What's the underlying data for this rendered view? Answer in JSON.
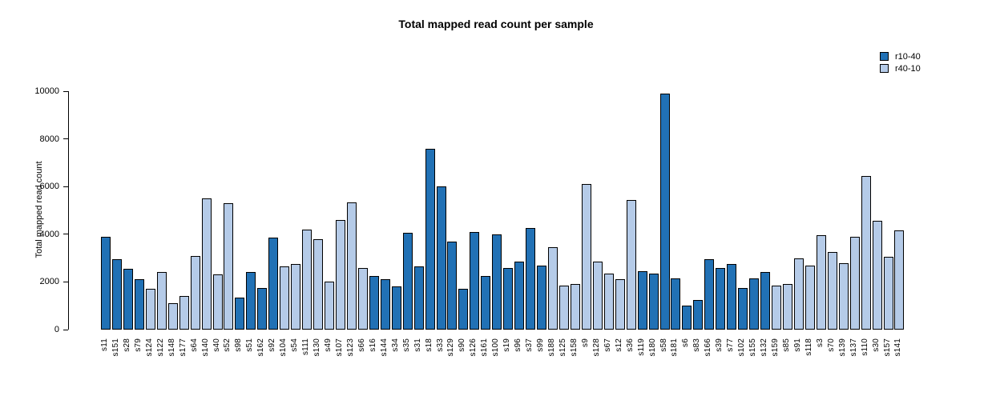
{
  "title": "Total mapped read count per sample",
  "legend": {
    "items": [
      {
        "label": "r10-40",
        "color": "#2171b5"
      },
      {
        "label": "r40-10",
        "color": "#b5cbe8"
      }
    ]
  },
  "chart_data": {
    "type": "bar",
    "title": "Total mapped read count per sample",
    "xlabel": "",
    "ylabel": "Total mapped read count",
    "ylim": [
      0,
      10000
    ],
    "yticks": [
      0,
      2000,
      4000,
      6000,
      8000,
      10000
    ],
    "grid": false,
    "legend_position": "top-right",
    "colors": {
      "r10-40": "#2171b5",
      "r40-10": "#b5cbe8"
    },
    "bars": [
      {
        "label": "s11",
        "value": 3900,
        "group": "r10-40"
      },
      {
        "label": "s151",
        "value": 2950,
        "group": "r10-40"
      },
      {
        "label": "s28",
        "value": 2550,
        "group": "r10-40"
      },
      {
        "label": "s79",
        "value": 2100,
        "group": "r10-40"
      },
      {
        "label": "s124",
        "value": 1700,
        "group": "r40-10"
      },
      {
        "label": "s122",
        "value": 2400,
        "group": "r40-10"
      },
      {
        "label": "s148",
        "value": 1100,
        "group": "r40-10"
      },
      {
        "label": "s177",
        "value": 1400,
        "group": "r40-10"
      },
      {
        "label": "s64",
        "value": 3100,
        "group": "r40-10"
      },
      {
        "label": "s140",
        "value": 5500,
        "group": "r40-10"
      },
      {
        "label": "s40",
        "value": 2300,
        "group": "r40-10"
      },
      {
        "label": "s52",
        "value": 5300,
        "group": "r40-10"
      },
      {
        "label": "s98",
        "value": 1350,
        "group": "r10-40"
      },
      {
        "label": "s51",
        "value": 2400,
        "group": "r10-40"
      },
      {
        "label": "s162",
        "value": 1750,
        "group": "r10-40"
      },
      {
        "label": "s92",
        "value": 3850,
        "group": "r10-40"
      },
      {
        "label": "s104",
        "value": 2650,
        "group": "r40-10"
      },
      {
        "label": "s54",
        "value": 2750,
        "group": "r40-10"
      },
      {
        "label": "s111",
        "value": 4200,
        "group": "r40-10"
      },
      {
        "label": "s130",
        "value": 3800,
        "group": "r40-10"
      },
      {
        "label": "s49",
        "value": 2000,
        "group": "r40-10"
      },
      {
        "label": "s107",
        "value": 4600,
        "group": "r40-10"
      },
      {
        "label": "s123",
        "value": 5350,
        "group": "r40-10"
      },
      {
        "label": "s66",
        "value": 2600,
        "group": "r40-10"
      },
      {
        "label": "s16",
        "value": 2250,
        "group": "r10-40"
      },
      {
        "label": "s144",
        "value": 2100,
        "group": "r10-40"
      },
      {
        "label": "s34",
        "value": 1800,
        "group": "r10-40"
      },
      {
        "label": "s35",
        "value": 4050,
        "group": "r10-40"
      },
      {
        "label": "s31",
        "value": 2650,
        "group": "r10-40"
      },
      {
        "label": "s18",
        "value": 7600,
        "group": "r10-40"
      },
      {
        "label": "s33",
        "value": 6000,
        "group": "r10-40"
      },
      {
        "label": "s129",
        "value": 3700,
        "group": "r10-40"
      },
      {
        "label": "s90",
        "value": 1700,
        "group": "r10-40"
      },
      {
        "label": "s126",
        "value": 4100,
        "group": "r10-40"
      },
      {
        "label": "s161",
        "value": 2250,
        "group": "r10-40"
      },
      {
        "label": "s100",
        "value": 4000,
        "group": "r10-40"
      },
      {
        "label": "s19",
        "value": 2600,
        "group": "r10-40"
      },
      {
        "label": "s96",
        "value": 2850,
        "group": "r10-40"
      },
      {
        "label": "s37",
        "value": 4250,
        "group": "r10-40"
      },
      {
        "label": "s99",
        "value": 2700,
        "group": "r10-40"
      },
      {
        "label": "s188",
        "value": 3450,
        "group": "r40-10"
      },
      {
        "label": "s125",
        "value": 1850,
        "group": "r40-10"
      },
      {
        "label": "s158",
        "value": 1900,
        "group": "r40-10"
      },
      {
        "label": "s9",
        "value": 6100,
        "group": "r40-10"
      },
      {
        "label": "s128",
        "value": 2850,
        "group": "r40-10"
      },
      {
        "label": "s67",
        "value": 2350,
        "group": "r40-10"
      },
      {
        "label": "s12",
        "value": 2100,
        "group": "r40-10"
      },
      {
        "label": "s36",
        "value": 5450,
        "group": "r40-10"
      },
      {
        "label": "s119",
        "value": 2450,
        "group": "r10-40"
      },
      {
        "label": "s180",
        "value": 2350,
        "group": "r10-40"
      },
      {
        "label": "s58",
        "value": 9900,
        "group": "r10-40"
      },
      {
        "label": "s181",
        "value": 2150,
        "group": "r10-40"
      },
      {
        "label": "s6",
        "value": 1000,
        "group": "r10-40"
      },
      {
        "label": "s83",
        "value": 1250,
        "group": "r10-40"
      },
      {
        "label": "s166",
        "value": 2950,
        "group": "r10-40"
      },
      {
        "label": "s39",
        "value": 2600,
        "group": "r10-40"
      },
      {
        "label": "s77",
        "value": 2750,
        "group": "r10-40"
      },
      {
        "label": "s102",
        "value": 1750,
        "group": "r10-40"
      },
      {
        "label": "s155",
        "value": 2150,
        "group": "r10-40"
      },
      {
        "label": "s132",
        "value": 2400,
        "group": "r10-40"
      },
      {
        "label": "s159",
        "value": 1850,
        "group": "r40-10"
      },
      {
        "label": "s85",
        "value": 1900,
        "group": "r40-10"
      },
      {
        "label": "s91",
        "value": 3000,
        "group": "r40-10"
      },
      {
        "label": "s118",
        "value": 2700,
        "group": "r40-10"
      },
      {
        "label": "s3",
        "value": 3950,
        "group": "r40-10"
      },
      {
        "label": "s70",
        "value": 3250,
        "group": "r40-10"
      },
      {
        "label": "s139",
        "value": 2800,
        "group": "r40-10"
      },
      {
        "label": "s137",
        "value": 3900,
        "group": "r40-10"
      },
      {
        "label": "s110",
        "value": 6450,
        "group": "r40-10"
      },
      {
        "label": "s30",
        "value": 4550,
        "group": "r40-10"
      },
      {
        "label": "s157",
        "value": 3050,
        "group": "r40-10"
      },
      {
        "label": "s141",
        "value": 4150,
        "group": "r40-10"
      }
    ]
  }
}
